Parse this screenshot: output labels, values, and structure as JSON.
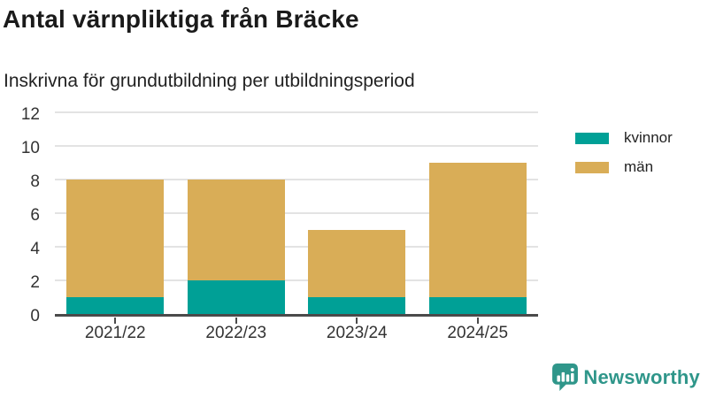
{
  "header": {
    "title": "Antal värnpliktiga från Bräcke",
    "subtitle": "Inskrivna för grundutbildning per utbildningsperiod"
  },
  "chart_data": {
    "type": "bar",
    "stacked": true,
    "categories": [
      "2021/22",
      "2022/23",
      "2023/24",
      "2024/25"
    ],
    "series": [
      {
        "name": "kvinnor",
        "color": "#00a096",
        "values": [
          1,
          2,
          1,
          1
        ]
      },
      {
        "name": "män",
        "color": "#d9ad57",
        "values": [
          7,
          6,
          4,
          8
        ]
      }
    ],
    "totals": [
      8,
      8,
      5,
      9
    ],
    "title": "Antal värnpliktiga från Bräcke",
    "subtitle": "Inskrivna för grundutbildning per utbildningsperiod",
    "xlabel": "",
    "ylabel": "",
    "ylim": [
      0,
      12
    ],
    "yticks": [
      0,
      2,
      4,
      6,
      8,
      10,
      12
    ],
    "grid": true,
    "legend_position": "top-right"
  },
  "legend": {
    "items": [
      {
        "label": "kvinnor",
        "color": "#00a096"
      },
      {
        "label": "män",
        "color": "#d9ad57"
      }
    ]
  },
  "footer": {
    "brand": "Newsworthy",
    "brand_color": "#2f968a"
  },
  "colors": {
    "grid": "#e3e3e3",
    "axis": "#4a4a4a",
    "tick_text": "#333333",
    "title_text": "#1a1a1a"
  }
}
